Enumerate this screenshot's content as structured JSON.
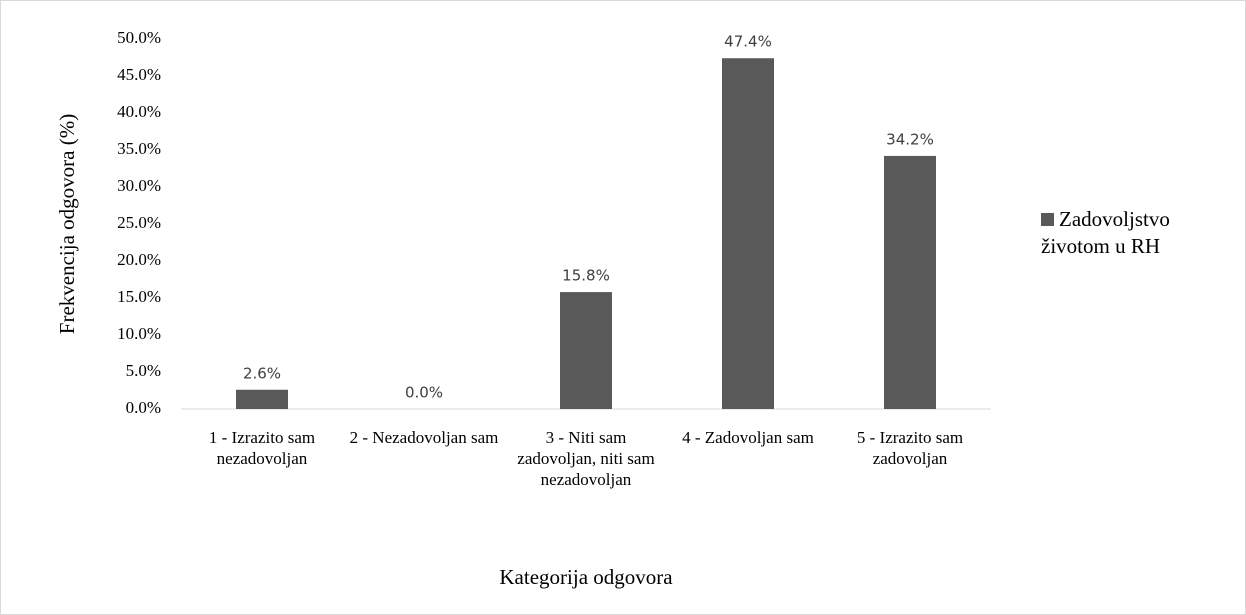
{
  "chart_data": {
    "type": "bar",
    "categories": [
      "1 - Izrazito sam nezadovoljan",
      "2 - Nezadovoljan sam",
      "3 - Niti sam zadovoljan, niti sam nezadovoljan",
      "4 - Zadovoljan sam",
      "5 - Izrazito sam zadovoljan"
    ],
    "series": [
      {
        "name": "Zadovoljstvo životom u RH",
        "color": "#595959",
        "values": [
          2.6,
          0.0,
          15.8,
          47.4,
          34.2
        ],
        "value_labels": [
          "2.6%",
          "0.0%",
          "15.8%",
          "47.4%",
          "34.2%"
        ]
      }
    ],
    "x_label": "Kategorija odgovora",
    "y_label": "Frekvencija odgovora (%)",
    "ylim": [
      0,
      50
    ],
    "yticks": [
      {
        "value": 0,
        "label": "0.0%"
      },
      {
        "value": 5,
        "label": "5.0%"
      },
      {
        "value": 10,
        "label": "10.0%"
      },
      {
        "value": 15,
        "label": "15.0%"
      },
      {
        "value": 20,
        "label": "20.0%"
      },
      {
        "value": 25,
        "label": "25.0%"
      },
      {
        "value": 30,
        "label": "30.0%"
      },
      {
        "value": 35,
        "label": "35.0%"
      },
      {
        "value": 40,
        "label": "40.0%"
      },
      {
        "value": 45,
        "label": "45.0%"
      },
      {
        "value": 50,
        "label": "50.0%"
      }
    ],
    "grid": false,
    "legend": "right"
  }
}
